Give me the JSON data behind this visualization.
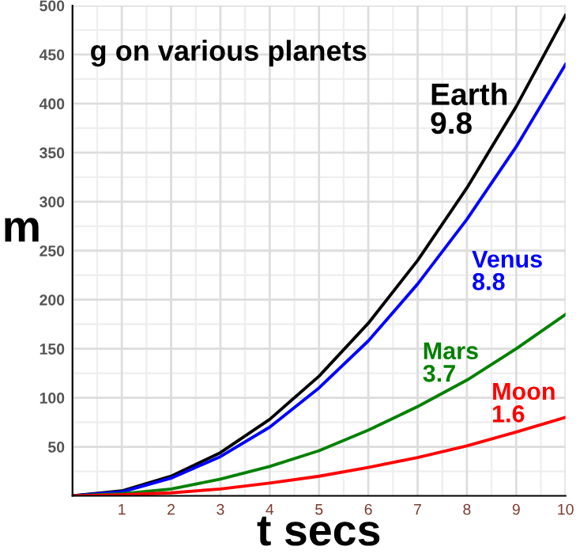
{
  "chart_data": {
    "type": "line",
    "title": "g on various planets",
    "xlabel": "t secs",
    "ylabel": "m",
    "x": [
      0,
      1,
      2,
      3,
      4,
      5,
      6,
      7,
      8,
      9,
      10
    ],
    "series": [
      {
        "name": "Earth\n9.8",
        "color": "#000000",
        "values": [
          0,
          5,
          20,
          44,
          78,
          122,
          176,
          240,
          314,
          397,
          490
        ]
      },
      {
        "name": "Venus\n8.8",
        "color": "#0000ff",
        "values": [
          0,
          4,
          18,
          40,
          70,
          110,
          158,
          216,
          282,
          356,
          440
        ]
      },
      {
        "name": "Mars\n3.7",
        "color": "#008000",
        "values": [
          0,
          2,
          7,
          17,
          30,
          46,
          67,
          91,
          118,
          150,
          185
        ]
      },
      {
        "name": "Moon\n1.6",
        "color": "#ff0000",
        "values": [
          0,
          1,
          3,
          7,
          13,
          20,
          29,
          39,
          51,
          65,
          80
        ]
      }
    ],
    "xlim": [
      0,
      10
    ],
    "ylim": [
      0,
      500
    ],
    "xticks": [
      1,
      2,
      3,
      4,
      5,
      6,
      7,
      8,
      9,
      10
    ],
    "yticks": [
      50,
      100,
      150,
      200,
      250,
      300,
      350,
      400,
      450,
      500
    ],
    "grid": true,
    "marker": "none",
    "line_style": "solid",
    "legend": false
  }
}
